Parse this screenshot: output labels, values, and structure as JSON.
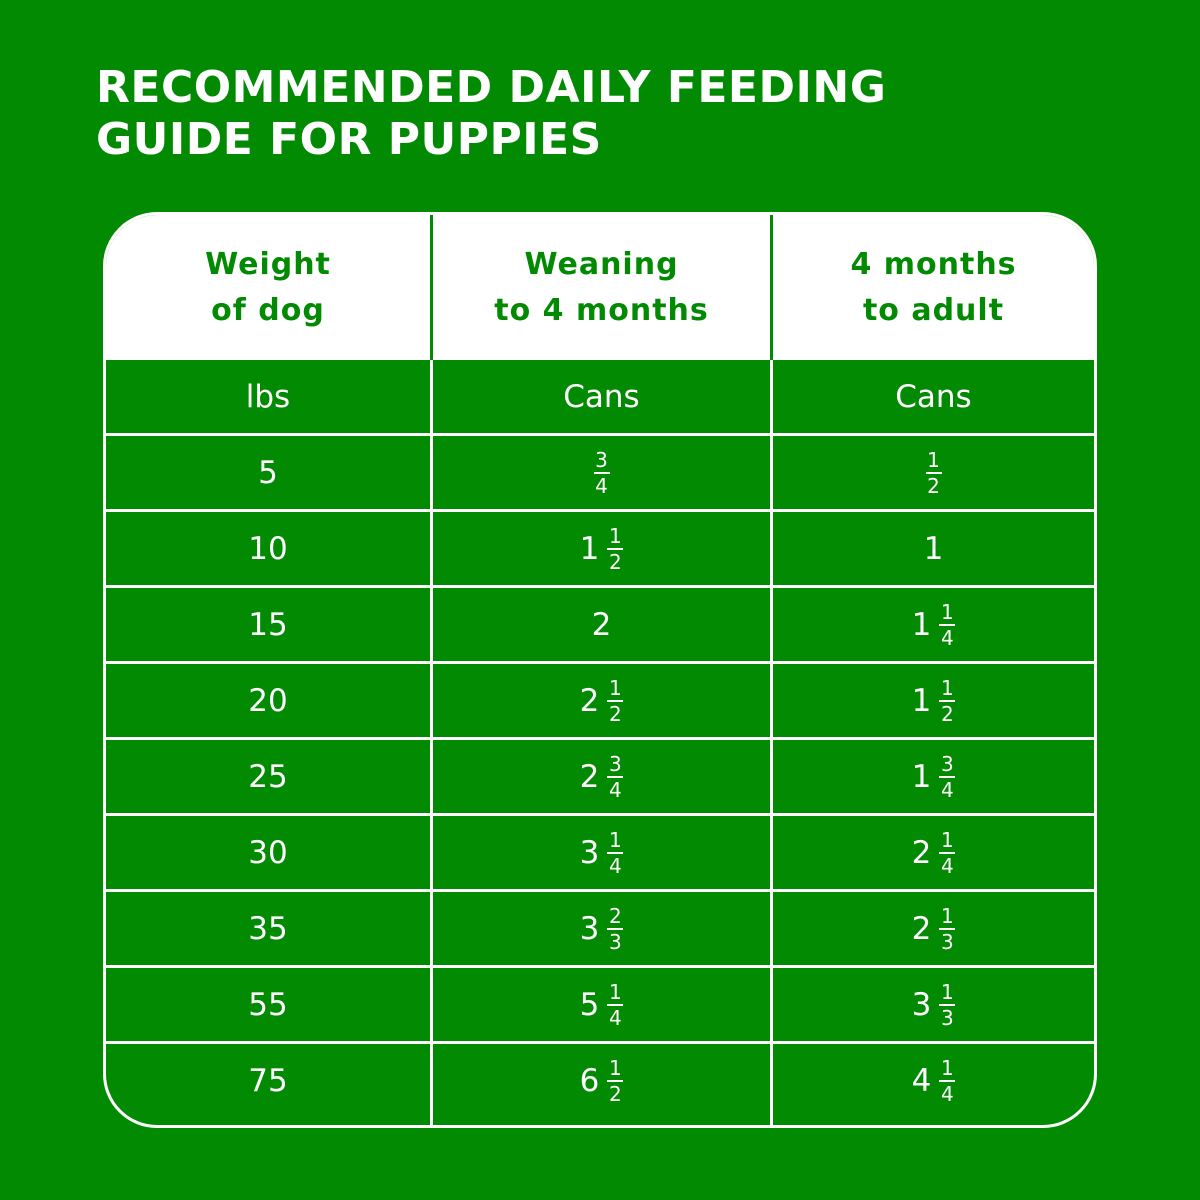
{
  "title": {
    "line1": "RECOMMENDED DAILY FEEDING",
    "line2": "GUIDE FOR PUPPIES"
  },
  "colors": {
    "background": "#038a03",
    "header_bg": "#ffffff",
    "header_text": "#038a03",
    "body_text": "#ffffff"
  },
  "table": {
    "headers": [
      {
        "line1": "Weight",
        "line2": "of dog"
      },
      {
        "line1": "Weaning",
        "line2": "to 4 months"
      },
      {
        "line1": "4 months",
        "line2": "to adult"
      }
    ],
    "units": [
      "lbs",
      "Cans",
      "Cans"
    ],
    "rows": [
      {
        "weight": "5",
        "weaning": {
          "whole": "",
          "num": "3",
          "den": "4"
        },
        "adult": {
          "whole": "",
          "num": "1",
          "den": "2"
        }
      },
      {
        "weight": "10",
        "weaning": {
          "whole": "1",
          "num": "1",
          "den": "2"
        },
        "adult": {
          "whole": "1",
          "num": "",
          "den": ""
        }
      },
      {
        "weight": "15",
        "weaning": {
          "whole": "2",
          "num": "",
          "den": ""
        },
        "adult": {
          "whole": "1",
          "num": "1",
          "den": "4"
        }
      },
      {
        "weight": "20",
        "weaning": {
          "whole": "2",
          "num": "1",
          "den": "2"
        },
        "adult": {
          "whole": "1",
          "num": "1",
          "den": "2"
        }
      },
      {
        "weight": "25",
        "weaning": {
          "whole": "2",
          "num": "3",
          "den": "4"
        },
        "adult": {
          "whole": "1",
          "num": "3",
          "den": "4"
        }
      },
      {
        "weight": "30",
        "weaning": {
          "whole": "3",
          "num": "1",
          "den": "4"
        },
        "adult": {
          "whole": "2",
          "num": "1",
          "den": "4"
        }
      },
      {
        "weight": "35",
        "weaning": {
          "whole": "3",
          "num": "2",
          "den": "3"
        },
        "adult": {
          "whole": "2",
          "num": "1",
          "den": "3"
        }
      },
      {
        "weight": "55",
        "weaning": {
          "whole": "5",
          "num": "1",
          "den": "4"
        },
        "adult": {
          "whole": "3",
          "num": "1",
          "den": "3"
        }
      },
      {
        "weight": "75",
        "weaning": {
          "whole": "6",
          "num": "1",
          "den": "2"
        },
        "adult": {
          "whole": "4",
          "num": "1",
          "den": "4"
        }
      }
    ]
  }
}
